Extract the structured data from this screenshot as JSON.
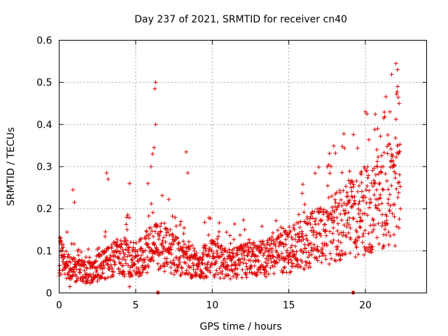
{
  "chart_data": {
    "type": "scatter",
    "title": "Day 237 of 2021, SRMTID for receiver cn40",
    "xlabel": "GPS time / hours",
    "ylabel": "SRMTID / TECUs",
    "xlim": [
      0,
      24
    ],
    "ylim": [
      0,
      0.6
    ],
    "x_ticks": [
      0,
      5,
      10,
      15,
      20
    ],
    "x_tick_labels": [
      "0",
      "5",
      "10",
      "15",
      "20"
    ],
    "y_ticks": [
      0,
      0.1,
      0.2,
      0.3,
      0.4,
      0.5,
      0.6
    ],
    "y_tick_labels": [
      "0",
      "0.1",
      "0.2",
      "0.3",
      "0.4",
      "0.5",
      "0.6"
    ],
    "grid": true,
    "marker": "plus",
    "color": "#dd0000",
    "series": [
      {
        "name": "SRMTID",
        "trend_knots": [
          [
            0.0,
            0.09
          ],
          [
            0.5,
            0.07
          ],
          [
            1.0,
            0.055
          ],
          [
            2.0,
            0.05
          ],
          [
            3.0,
            0.07
          ],
          [
            4.0,
            0.09
          ],
          [
            5.0,
            0.08
          ],
          [
            6.0,
            0.11
          ],
          [
            7.0,
            0.11
          ],
          [
            8.0,
            0.08
          ],
          [
            9.0,
            0.07
          ],
          [
            10.0,
            0.085
          ],
          [
            11.0,
            0.07
          ],
          [
            12.0,
            0.08
          ],
          [
            13.0,
            0.08
          ],
          [
            14.0,
            0.09
          ],
          [
            15.0,
            0.105
          ],
          [
            16.0,
            0.12
          ],
          [
            17.0,
            0.14
          ],
          [
            18.0,
            0.16
          ],
          [
            19.0,
            0.18
          ],
          [
            20.0,
            0.2
          ],
          [
            21.0,
            0.22
          ],
          [
            22.0,
            0.25
          ],
          [
            22.3,
            0.27
          ]
        ],
        "highlights": [
          {
            "x": 0.1,
            "y": 0.13
          },
          {
            "x": 0.9,
            "y": 0.245
          },
          {
            "x": 1.0,
            "y": 0.215
          },
          {
            "x": 3.1,
            "y": 0.285
          },
          {
            "x": 3.2,
            "y": 0.27
          },
          {
            "x": 4.6,
            "y": 0.26
          },
          {
            "x": 5.8,
            "y": 0.26
          },
          {
            "x": 6.0,
            "y": 0.3
          },
          {
            "x": 6.1,
            "y": 0.33
          },
          {
            "x": 6.2,
            "y": 0.345
          },
          {
            "x": 6.3,
            "y": 0.4
          },
          {
            "x": 6.25,
            "y": 0.485
          },
          {
            "x": 6.3,
            "y": 0.5
          },
          {
            "x": 8.3,
            "y": 0.335
          },
          {
            "x": 8.4,
            "y": 0.285
          },
          {
            "x": 19.0,
            "y": 0.26
          },
          {
            "x": 20.0,
            "y": 0.43
          },
          {
            "x": 20.1,
            "y": 0.425
          },
          {
            "x": 20.8,
            "y": 0.39
          },
          {
            "x": 21.2,
            "y": 0.415
          },
          {
            "x": 21.6,
            "y": 0.43
          },
          {
            "x": 22.0,
            "y": 0.545
          },
          {
            "x": 22.1,
            "y": 0.53
          },
          {
            "x": 22.1,
            "y": 0.49
          },
          {
            "x": 22.2,
            "y": 0.45
          },
          {
            "x": 22.2,
            "y": 0.335
          },
          {
            "x": 0.7,
            "y": 0.015
          },
          {
            "x": 4.6,
            "y": 0.015
          }
        ]
      }
    ],
    "bottom_markers": [
      6.45,
      19.2
    ]
  }
}
